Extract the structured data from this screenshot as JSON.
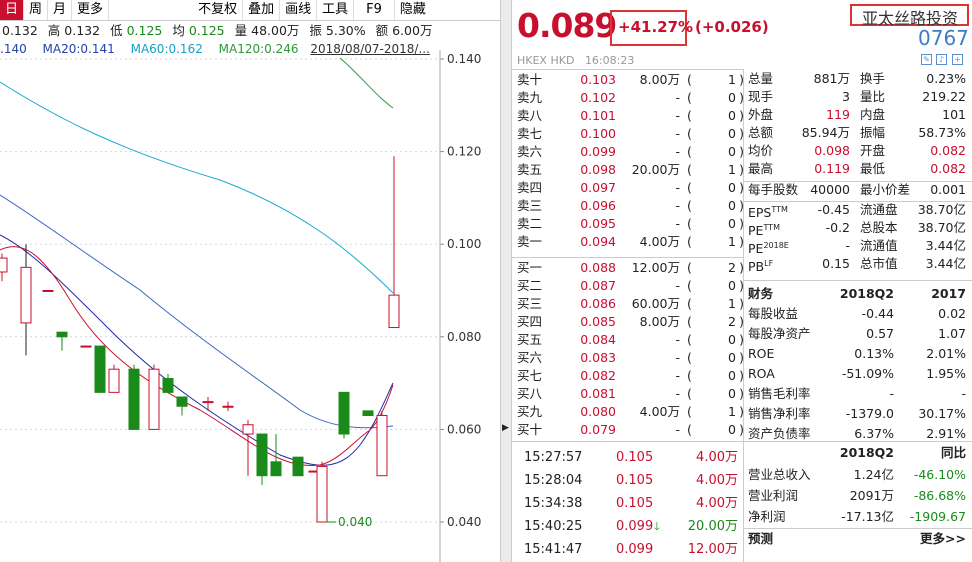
{
  "toolbar": {
    "tabs": [
      "日",
      "周",
      "月",
      "更多"
    ],
    "buttons": [
      "不复权",
      "叠加",
      "画线",
      "工具",
      "F9",
      "隐藏"
    ]
  },
  "info": {
    "prev_label": "",
    "prev": "0.132",
    "high_label": "高",
    "high": "0.132",
    "low_label": "低",
    "low": "0.125",
    "avg_label": "均",
    "avg": "0.125",
    "vol_label": "量",
    "vol": "48.00万",
    "amp_label": "振",
    "amp": "5.30%",
    "amt_label": "额",
    "amt": "6.00万"
  },
  "ma": {
    "ma10": ".140",
    "ma20": "MA20:0.141",
    "ma60": "MA60:0.162",
    "ma120": "MA120:0.246",
    "date": "2018/08/07-2018/..."
  },
  "chart_data": {
    "type": "candlestick",
    "yticks": [
      "0.140",
      "0.120",
      "0.100",
      "0.080",
      "0.060",
      "0.040"
    ],
    "ylim": [
      0.035,
      0.145
    ],
    "low_label": "0.040",
    "candles": [
      {
        "o": 0.094,
        "c": 0.097,
        "h": 0.098,
        "l": 0.092
      },
      {
        "o": 0.083,
        "c": 0.095,
        "h": 0.1,
        "l": 0.076
      },
      {
        "o": 0.09,
        "c": 0.09,
        "h": 0.09,
        "l": 0.09
      },
      {
        "o": 0.081,
        "c": 0.08,
        "h": 0.081,
        "l": 0.077
      },
      {
        "o": 0.078,
        "c": 0.078,
        "h": 0.078,
        "l": 0.078
      },
      {
        "o": 0.078,
        "c": 0.068,
        "h": 0.078,
        "l": 0.068
      },
      {
        "o": 0.068,
        "c": 0.073,
        "h": 0.074,
        "l": 0.068
      },
      {
        "o": 0.073,
        "c": 0.06,
        "h": 0.074,
        "l": 0.06
      },
      {
        "o": 0.06,
        "c": 0.073,
        "h": 0.074,
        "l": 0.06
      },
      {
        "o": 0.071,
        "c": 0.068,
        "h": 0.072,
        "l": 0.068
      },
      {
        "o": 0.067,
        "c": 0.065,
        "h": 0.067,
        "l": 0.063
      },
      {
        "o": 0.066,
        "c": 0.066,
        "h": 0.067,
        "l": 0.064
      },
      {
        "o": 0.065,
        "c": 0.065,
        "h": 0.066,
        "l": 0.064
      },
      {
        "o": 0.059,
        "c": 0.061,
        "h": 0.062,
        "l": 0.05
      },
      {
        "o": 0.059,
        "c": 0.05,
        "h": 0.059,
        "l": 0.048
      },
      {
        "o": 0.053,
        "c": 0.05,
        "h": 0.059,
        "l": 0.05
      },
      {
        "o": 0.054,
        "c": 0.05,
        "h": 0.054,
        "l": 0.05
      },
      {
        "o": 0.051,
        "c": 0.051,
        "h": 0.051,
        "l": 0.051
      },
      {
        "o": 0.04,
        "c": 0.052,
        "h": 0.053,
        "l": 0.04
      },
      {
        "o": 0.068,
        "c": 0.059,
        "h": 0.068,
        "l": 0.058
      },
      {
        "o": 0.064,
        "c": 0.063,
        "h": 0.064,
        "l": 0.063
      },
      {
        "o": 0.05,
        "c": 0.063,
        "h": 0.064,
        "l": 0.05
      },
      {
        "o": 0.082,
        "c": 0.089,
        "h": 0.119,
        "l": 0.082
      }
    ]
  },
  "quote": {
    "price": "0.089",
    "pct": "+41.27%",
    "chg": "(+0.026)",
    "name": "亚太丝路投资",
    "code": "0767",
    "market": "HKEX  HKD",
    "time": "16:08:23"
  },
  "asks": [
    {
      "label": "卖十",
      "price": "0.103",
      "vol": "8.00万",
      "cnt": "1"
    },
    {
      "label": "卖九",
      "price": "0.102",
      "vol": "-",
      "cnt": "0"
    },
    {
      "label": "卖八",
      "price": "0.101",
      "vol": "-",
      "cnt": "0"
    },
    {
      "label": "卖七",
      "price": "0.100",
      "vol": "-",
      "cnt": "0"
    },
    {
      "label": "卖六",
      "price": "0.099",
      "vol": "-",
      "cnt": "0"
    },
    {
      "label": "卖五",
      "price": "0.098",
      "vol": "20.00万",
      "cnt": "1"
    },
    {
      "label": "卖四",
      "price": "0.097",
      "vol": "-",
      "cnt": "0"
    },
    {
      "label": "卖三",
      "price": "0.096",
      "vol": "-",
      "cnt": "0"
    },
    {
      "label": "卖二",
      "price": "0.095",
      "vol": "-",
      "cnt": "0"
    },
    {
      "label": "卖一",
      "price": "0.094",
      "vol": "4.00万",
      "cnt": "1"
    }
  ],
  "bids": [
    {
      "label": "买一",
      "price": "0.088",
      "vol": "12.00万",
      "cnt": "2"
    },
    {
      "label": "买二",
      "price": "0.087",
      "vol": "-",
      "cnt": "0"
    },
    {
      "label": "买三",
      "price": "0.086",
      "vol": "60.00万",
      "cnt": "1"
    },
    {
      "label": "买四",
      "price": "0.085",
      "vol": "8.00万",
      "cnt": "2"
    },
    {
      "label": "买五",
      "price": "0.084",
      "vol": "-",
      "cnt": "0"
    },
    {
      "label": "买六",
      "price": "0.083",
      "vol": "-",
      "cnt": "0"
    },
    {
      "label": "买七",
      "price": "0.082",
      "vol": "-",
      "cnt": "0"
    },
    {
      "label": "买八",
      "price": "0.081",
      "vol": "-",
      "cnt": "0"
    },
    {
      "label": "买九",
      "price": "0.080",
      "vol": "4.00万",
      "cnt": "1"
    },
    {
      "label": "买十",
      "price": "0.079",
      "vol": "-",
      "cnt": "0"
    }
  ],
  "trades": [
    {
      "time": "15:27:57",
      "price": "0.105",
      "vol": "4.00万",
      "dir": "up"
    },
    {
      "time": "15:28:04",
      "price": "0.105",
      "vol": "4.00万",
      "dir": "up"
    },
    {
      "time": "15:34:38",
      "price": "0.105",
      "vol": "4.00万",
      "dir": "up"
    },
    {
      "time": "15:40:25",
      "price": "0.099",
      "vol": "20.00万",
      "dir": "down"
    },
    {
      "time": "15:41:47",
      "price": "0.099",
      "vol": "12.00万",
      "dir": "up"
    }
  ],
  "stats": {
    "r1": {
      "k1": "总量",
      "v1": "881万",
      "k2": "换手",
      "v2": "0.23%"
    },
    "r2": {
      "k1": "现手",
      "v1": "3",
      "k2": "量比",
      "v2": "219.22"
    },
    "r3": {
      "k1": "外盘",
      "v1": "119",
      "k2": "内盘",
      "v2": "101"
    },
    "r4": {
      "k1": "总额",
      "v1": "85.94万",
      "k2": "振幅",
      "v2": "58.73%"
    },
    "r5": {
      "k1": "均价",
      "v1": "0.098",
      "k2": "开盘",
      "v2": "0.082"
    },
    "r6": {
      "k1": "最高",
      "v1": "0.119",
      "k2": "最低",
      "v2": "0.082"
    },
    "r7": {
      "k1": "每手股数",
      "v1": "40000",
      "k2": "最小价差",
      "v2": "0.001"
    },
    "r8": {
      "k1": "EPS",
      "sup1": "TTM",
      "v1": "-0.45",
      "k2": "流通盘",
      "v2": "38.70亿"
    },
    "r9": {
      "k1": "PE",
      "sup1": "TTM",
      "v1": "-0.2",
      "k2": "总股本",
      "v2": "38.70亿"
    },
    "r10": {
      "k1": "PE",
      "sup1": "2018E",
      "v1": "-",
      "k2": "流通值",
      "v2": "3.44亿"
    },
    "r11": {
      "k1": "PB",
      "sup1": "LF",
      "v1": "0.15",
      "k2": "总市值",
      "v2": "3.44亿"
    }
  },
  "fin": {
    "head": {
      "k": "财务",
      "c1": "2018Q2",
      "c2": "2017"
    },
    "rows": [
      {
        "k": "每股收益",
        "c1": "-0.44",
        "c2": "0.02"
      },
      {
        "k": "每股净资产",
        "c1": "0.57",
        "c2": "1.07"
      },
      {
        "k": "ROE",
        "c1": "0.13%",
        "c2": "2.01%"
      },
      {
        "k": "ROA",
        "c1": "-51.09%",
        "c2": "1.95%"
      },
      {
        "k": "销售毛利率",
        "c1": "-",
        "c2": "-"
      },
      {
        "k": "销售净利率",
        "c1": "-1379.0",
        "c2": "30.17%"
      },
      {
        "k": "资产负债率",
        "c1": "6.37%",
        "c2": "2.91%"
      }
    ],
    "head2": {
      "c1": "2018Q2",
      "c2": "同比"
    },
    "rows2": [
      {
        "k": "营业总收入",
        "c1": "1.24亿",
        "c2": "-46.10%"
      },
      {
        "k": "营业利润",
        "c1": "2091万",
        "c2": "-86.68%"
      },
      {
        "k": "净利润",
        "c1": "-17.13亿",
        "c2": "-1909.67"
      }
    ],
    "forecast": "预测",
    "more": "更多>>"
  }
}
